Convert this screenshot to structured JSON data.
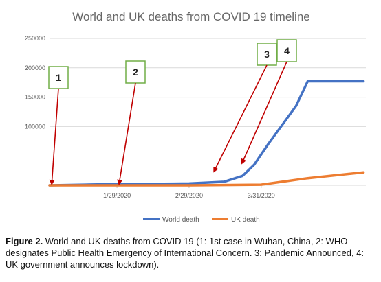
{
  "chart_data": {
    "type": "line",
    "title": "World and UK deaths from COVID 19 timeline",
    "xlabel": "",
    "ylabel": "",
    "ylim": [
      0,
      250000
    ],
    "yticks": [
      {
        "value": 250000,
        "label": "250000"
      },
      {
        "value": 200000,
        "label": "200000"
      },
      {
        "value": 150000,
        "label": "150000"
      },
      {
        "value": 100000,
        "label": "100000"
      }
    ],
    "xlim": [
      "2019-12-31",
      "2020-05-15"
    ],
    "xticks": [
      {
        "date": "2020-01-29",
        "label": "1/29/2020"
      },
      {
        "date": "2020-02-29",
        "label": "2/29/2020"
      },
      {
        "date": "2020-03-31",
        "label": "3/31/2020"
      }
    ],
    "grid": true,
    "legend_position": "bottom",
    "series": [
      {
        "name": "World death",
        "color": "#4472C4",
        "points": [
          {
            "x": "2019-12-31",
            "y": 0
          },
          {
            "x": "2020-01-15",
            "y": 1000
          },
          {
            "x": "2020-01-29",
            "y": 2000
          },
          {
            "x": "2020-02-29",
            "y": 3000
          },
          {
            "x": "2020-03-15",
            "y": 6000
          },
          {
            "x": "2020-03-23",
            "y": 16000
          },
          {
            "x": "2020-03-28",
            "y": 35000
          },
          {
            "x": "2020-04-03",
            "y": 70000
          },
          {
            "x": "2020-04-15",
            "y": 135000
          },
          {
            "x": "2020-04-20",
            "y": 177000
          },
          {
            "x": "2020-05-14",
            "y": 177000
          }
        ]
      },
      {
        "name": "UK death",
        "color": "#ED7D31",
        "points": [
          {
            "x": "2019-12-31",
            "y": 0
          },
          {
            "x": "2020-03-01",
            "y": 0
          },
          {
            "x": "2020-03-31",
            "y": 1000
          },
          {
            "x": "2020-04-20",
            "y": 12000
          },
          {
            "x": "2020-05-14",
            "y": 22000
          }
        ]
      }
    ],
    "annotations": [
      {
        "label": "1",
        "date": "2020-01-01"
      },
      {
        "label": "2",
        "date": "2020-01-30"
      },
      {
        "label": "3",
        "date": "2020-03-11"
      },
      {
        "label": "4",
        "date": "2020-03-23"
      }
    ]
  },
  "caption": {
    "label": "Figure 2.",
    "text": " World and UK deaths from COVID 19 (1: 1st case in Wuhan, China, 2: WHO designates Public Health Emergency of International Concern. 3: Pandemic Announced, 4: UK government announces lockdown)."
  },
  "colors": {
    "world": "#4472C4",
    "uk": "#ED7D31",
    "arrow": "#C00000",
    "callout_border": "#70AD47",
    "grid": "#D9D9D9"
  }
}
